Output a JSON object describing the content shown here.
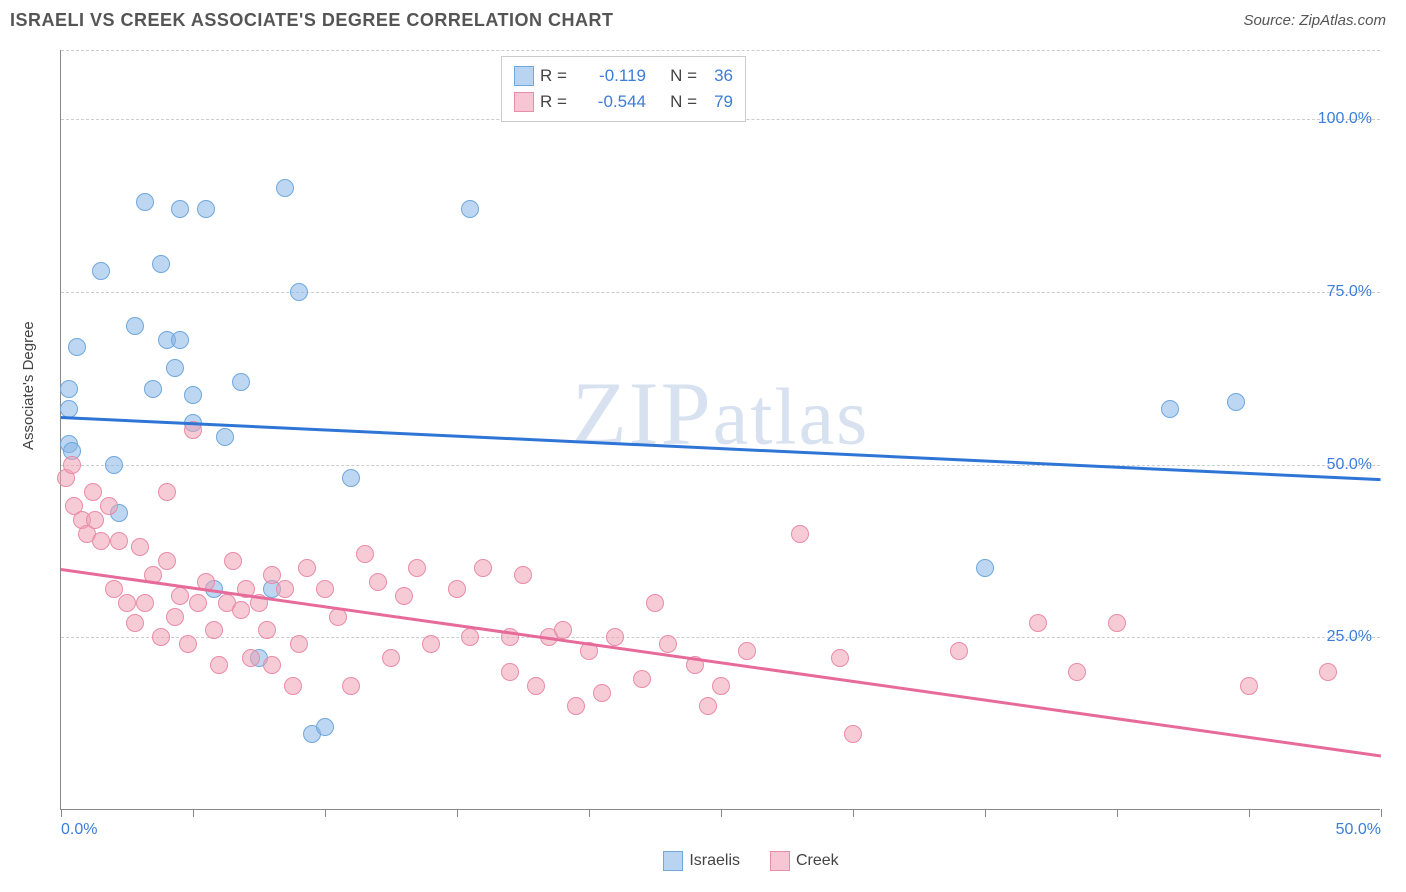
{
  "header": {
    "title": "ISRAELI VS CREEK ASSOCIATE'S DEGREE CORRELATION CHART",
    "source": "Source: ZipAtlas.com"
  },
  "chart": {
    "type": "scatter",
    "ylabel": "Associate's Degree",
    "background_color": "#ffffff",
    "grid_color": "#cccccc",
    "axis_color": "#888888",
    "tick_label_color": "#3b7dd8",
    "label_fontsize": 15,
    "tick_fontsize": 16,
    "watermark": "ZIPatlas",
    "xlim": [
      0,
      50
    ],
    "ylim": [
      0,
      110
    ],
    "x_tick_positions": [
      0,
      5,
      10,
      15,
      20,
      25,
      30,
      35,
      40,
      45,
      50
    ],
    "x_tick_labels": {
      "0": "0.0%",
      "50": "50.0%"
    },
    "y_gridlines": [
      25,
      50,
      75,
      100,
      110
    ],
    "y_tick_labels": {
      "25": "25.0%",
      "50": "50.0%",
      "75": "75.0%",
      "100": "100.0%"
    },
    "point_radius": 9,
    "point_opacity": 0.55,
    "trend_line_width": 3,
    "series": [
      {
        "name": "Israelis",
        "fill_color": "rgba(135,180,230,0.55)",
        "stroke_color": "#6fa8dc",
        "swatch_fill": "#b8d4f0",
        "swatch_stroke": "#6fa8dc",
        "trend_color": "#2e75d6",
        "r_value": "-0.119",
        "n_value": "36",
        "trend": {
          "x1": 0,
          "y1": 57,
          "x2": 50,
          "y2": 48
        },
        "points": [
          [
            0.3,
            61
          ],
          [
            0.3,
            58
          ],
          [
            0.3,
            53
          ],
          [
            0.4,
            52
          ],
          [
            0.6,
            67
          ],
          [
            1.5,
            78
          ],
          [
            2.0,
            50
          ],
          [
            2.2,
            43
          ],
          [
            2.8,
            70
          ],
          [
            3.2,
            88
          ],
          [
            3.5,
            61
          ],
          [
            3.8,
            79
          ],
          [
            4.0,
            68
          ],
          [
            4.3,
            64
          ],
          [
            4.5,
            68
          ],
          [
            4.5,
            87
          ],
          [
            5.0,
            56
          ],
          [
            5.0,
            60
          ],
          [
            5.5,
            87
          ],
          [
            5.8,
            32
          ],
          [
            6.2,
            54
          ],
          [
            6.8,
            62
          ],
          [
            7.5,
            22
          ],
          [
            8.0,
            32
          ],
          [
            8.5,
            90
          ],
          [
            9.0,
            75
          ],
          [
            9.5,
            11
          ],
          [
            10.0,
            12
          ],
          [
            11.0,
            48
          ],
          [
            15.5,
            87
          ],
          [
            35.0,
            35
          ],
          [
            42.0,
            58
          ],
          [
            44.5,
            59
          ]
        ]
      },
      {
        "name": "Creek",
        "fill_color": "rgba(240,160,180,0.55)",
        "stroke_color": "#e88ca8",
        "swatch_fill": "#f7c6d4",
        "swatch_stroke": "#e88ca8",
        "trend_color": "#e76b9a",
        "r_value": "-0.544",
        "n_value": "79",
        "trend": {
          "x1": 0,
          "y1": 35,
          "x2": 50,
          "y2": 8
        },
        "points": [
          [
            0.2,
            48
          ],
          [
            0.4,
            50
          ],
          [
            0.5,
            44
          ],
          [
            0.8,
            42
          ],
          [
            1.0,
            40
          ],
          [
            1.2,
            46
          ],
          [
            1.3,
            42
          ],
          [
            1.5,
            39
          ],
          [
            1.8,
            44
          ],
          [
            2.0,
            32
          ],
          [
            2.2,
            39
          ],
          [
            2.5,
            30
          ],
          [
            2.8,
            27
          ],
          [
            3.0,
            38
          ],
          [
            3.2,
            30
          ],
          [
            3.5,
            34
          ],
          [
            3.8,
            25
          ],
          [
            4.0,
            36
          ],
          [
            4.0,
            46
          ],
          [
            4.3,
            28
          ],
          [
            4.5,
            31
          ],
          [
            4.8,
            24
          ],
          [
            5.0,
            55
          ],
          [
            5.2,
            30
          ],
          [
            5.5,
            33
          ],
          [
            5.8,
            26
          ],
          [
            6.0,
            21
          ],
          [
            6.3,
            30
          ],
          [
            6.5,
            36
          ],
          [
            6.8,
            29
          ],
          [
            7.0,
            32
          ],
          [
            7.2,
            22
          ],
          [
            7.5,
            30
          ],
          [
            7.8,
            26
          ],
          [
            8.0,
            34
          ],
          [
            8.0,
            21
          ],
          [
            8.5,
            32
          ],
          [
            8.8,
            18
          ],
          [
            9.0,
            24
          ],
          [
            9.3,
            35
          ],
          [
            10.0,
            32
          ],
          [
            10.5,
            28
          ],
          [
            11.0,
            18
          ],
          [
            11.5,
            37
          ],
          [
            12.0,
            33
          ],
          [
            12.5,
            22
          ],
          [
            13.0,
            31
          ],
          [
            13.5,
            35
          ],
          [
            14.0,
            24
          ],
          [
            15.0,
            32
          ],
          [
            15.5,
            25
          ],
          [
            16.0,
            35
          ],
          [
            17.0,
            20
          ],
          [
            17.0,
            25
          ],
          [
            17.5,
            34
          ],
          [
            18.0,
            18
          ],
          [
            18.5,
            25
          ],
          [
            19.0,
            26
          ],
          [
            19.5,
            15
          ],
          [
            20.0,
            23
          ],
          [
            20.5,
            17
          ],
          [
            21.0,
            25
          ],
          [
            22.0,
            19
          ],
          [
            22.5,
            30
          ],
          [
            23.0,
            24
          ],
          [
            24.0,
            21
          ],
          [
            24.5,
            15
          ],
          [
            25.0,
            18
          ],
          [
            26.0,
            23
          ],
          [
            28.0,
            40
          ],
          [
            29.5,
            22
          ],
          [
            30.0,
            11
          ],
          [
            34.0,
            23
          ],
          [
            37.0,
            27
          ],
          [
            38.5,
            20
          ],
          [
            40.0,
            27
          ],
          [
            45.0,
            18
          ],
          [
            48.0,
            20
          ]
        ]
      }
    ],
    "bottom_legend": [
      {
        "label": "Israelis",
        "series_idx": 0
      },
      {
        "label": "Creek",
        "series_idx": 1
      }
    ]
  }
}
